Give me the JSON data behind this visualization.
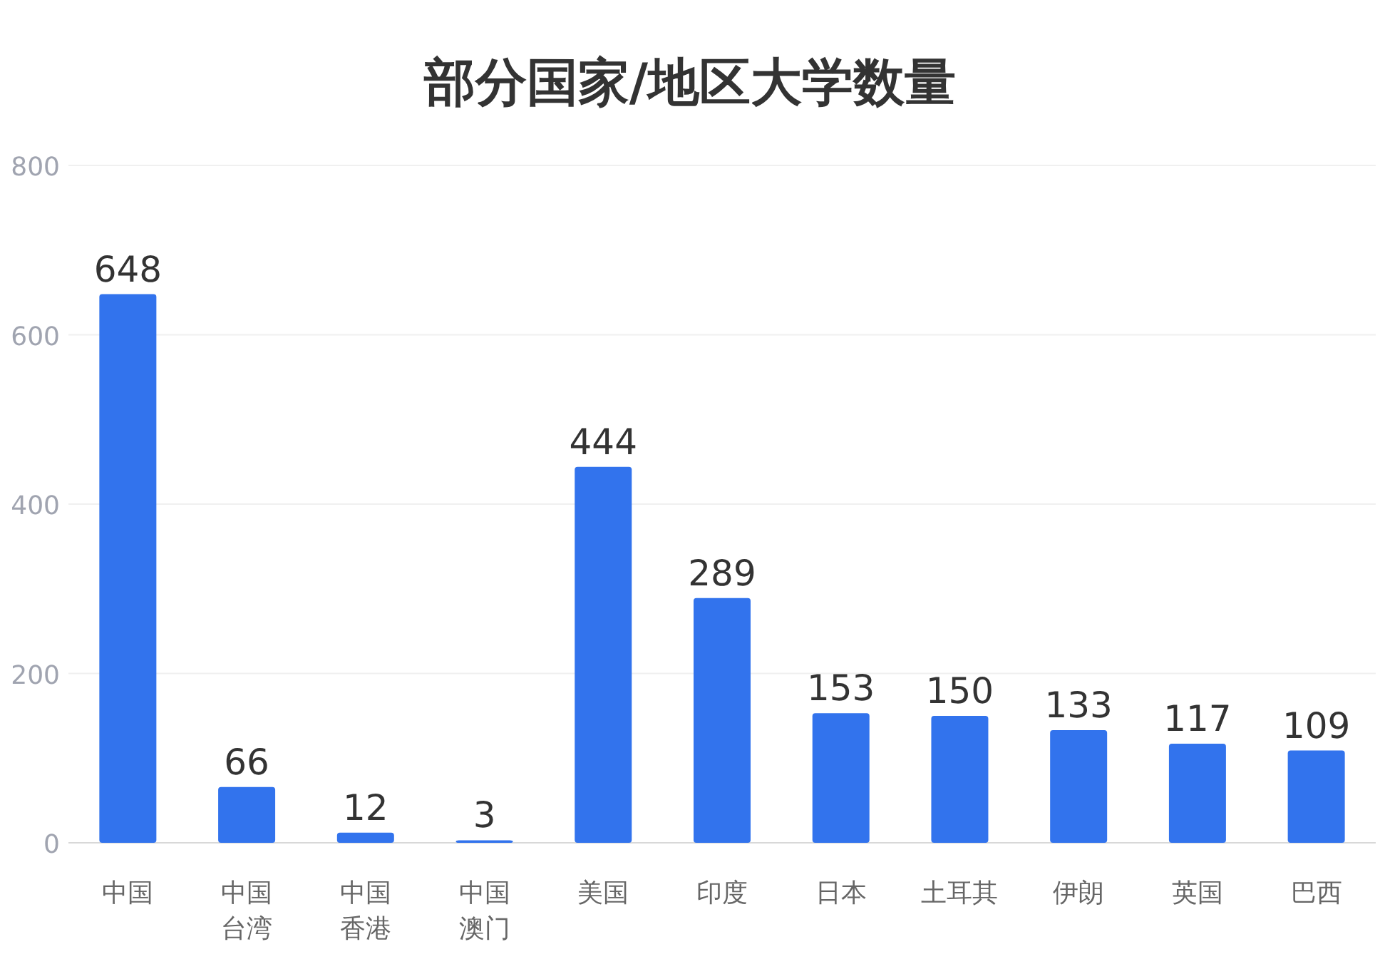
{
  "chart_data": {
    "type": "bar",
    "title": "部分国家/地区大学数量",
    "categories": [
      "中国",
      "中国台湾",
      "中国香港",
      "中国澳门",
      "美国",
      "印度",
      "日本",
      "土耳其",
      "伊朗",
      "英国",
      "巴西"
    ],
    "values": [
      648,
      66,
      12,
      3,
      444,
      289,
      153,
      150,
      133,
      117,
      109
    ],
    "color": "#3273ed",
    "ylim": [
      0,
      800
    ],
    "yticks": [
      0,
      200,
      400,
      600,
      800
    ],
    "grid": "y",
    "data_labels": true
  }
}
